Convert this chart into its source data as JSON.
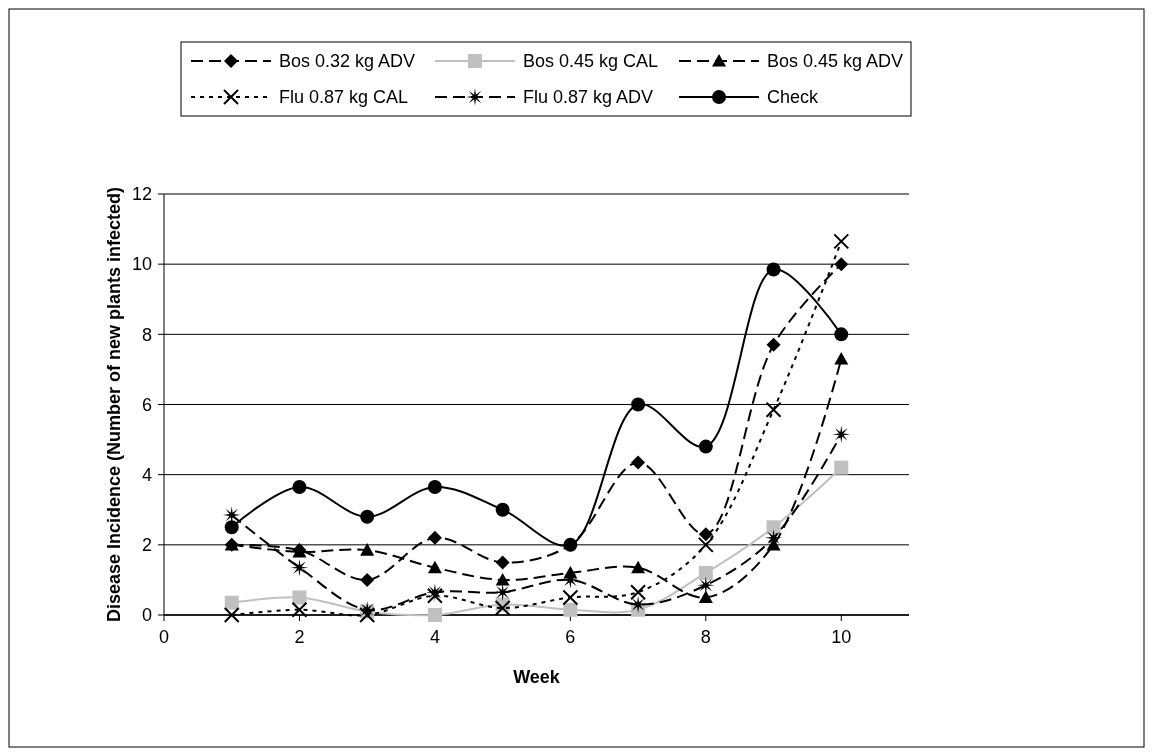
{
  "chart_data": {
    "type": "line",
    "xlabel": "Week",
    "ylabel": "Disease Incidence (Number of new plants infected)",
    "x": [
      1,
      2,
      3,
      4,
      5,
      6,
      7,
      8,
      9,
      10
    ],
    "xlim": [
      0,
      11
    ],
    "xticks": [
      0,
      2,
      4,
      6,
      8,
      10
    ],
    "ylim": [
      0,
      12
    ],
    "yticks": [
      0,
      2,
      4,
      6,
      8,
      10,
      12
    ],
    "grid": "y",
    "legend": "top",
    "series": [
      {
        "name": "Bos 0.32 kg ADV",
        "color": "#000000",
        "marker": "diamond",
        "line_style": "dashed",
        "values": [
          2,
          1.85,
          1,
          2.2,
          1.5,
          2,
          4.35,
          2.3,
          7.7,
          10
        ]
      },
      {
        "name": "Bos 0.45 kg CAL",
        "color": "#c0c0c0",
        "marker": "square",
        "line_style": "solid",
        "values": [
          0.35,
          0.5,
          0.1,
          0,
          0.3,
          0.15,
          0.15,
          1.2,
          2.5,
          4.2
        ]
      },
      {
        "name": "Bos 0.45 kg ADV",
        "color": "#000000",
        "marker": "triangle",
        "line_style": "dashed",
        "values": [
          2,
          1.8,
          1.85,
          1.35,
          1,
          1.2,
          1.35,
          0.5,
          2,
          7.3
        ]
      },
      {
        "name": "Flu 0.87 kg CAL",
        "color": "#000000",
        "marker": "cross",
        "line_style": "dotted",
        "values": [
          0,
          0.15,
          0,
          0.55,
          0.2,
          0.5,
          0.65,
          2,
          5.85,
          10.65
        ]
      },
      {
        "name": "Flu 0.87 kg ADV",
        "color": "#000000",
        "marker": "star",
        "line_style": "dashed",
        "values": [
          2.85,
          1.35,
          0.15,
          0.65,
          0.65,
          1,
          0.3,
          0.85,
          2.2,
          5.15
        ]
      },
      {
        "name": "Check",
        "color": "#000000",
        "marker": "circle",
        "line_style": "solid",
        "values": [
          2.5,
          3.65,
          2.8,
          3.65,
          3,
          2,
          6,
          4.8,
          9.85,
          8
        ]
      }
    ]
  }
}
